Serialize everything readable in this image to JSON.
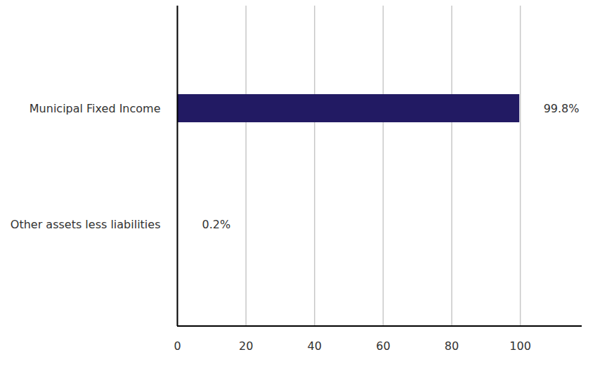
{
  "chart_data": {
    "type": "bar",
    "orientation": "horizontal",
    "categories": [
      "Municipal Fixed Income",
      "Other assets less liabilities"
    ],
    "values": [
      99.8,
      0.2
    ],
    "value_labels": [
      "99.8%",
      "0.2%"
    ],
    "data_labels": true,
    "colors": [
      "#221a63",
      "#221a63"
    ],
    "xlim": [
      0,
      118
    ],
    "xticks": [
      0,
      20,
      40,
      60,
      80,
      100
    ],
    "grid": true
  }
}
